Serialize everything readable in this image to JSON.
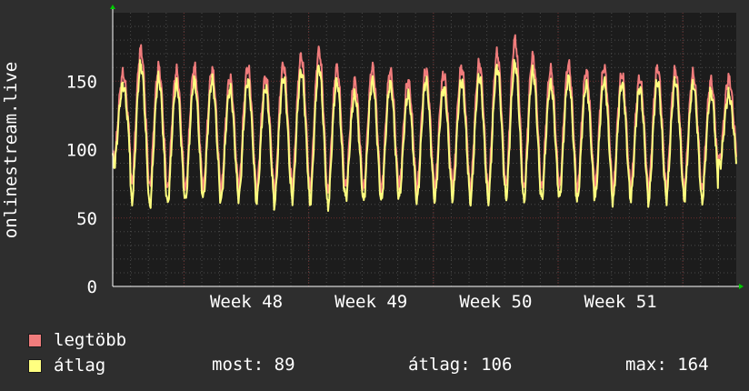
{
  "chart_data": {
    "type": "line",
    "ylabel": "onlinestream.live",
    "ylim": [
      0,
      200
    ],
    "yticks": [
      0,
      50,
      100,
      150
    ],
    "xticks": [
      "Week 48",
      "Week 49",
      "Week 50",
      "Week 51"
    ],
    "grid": true,
    "legend_placement": "bottom-left",
    "background": "#2e2e2e",
    "plot_background": "#1c1c1c",
    "grid_color": "#4a4a4a",
    "tick_grid_color": "#6b2d2d",
    "days": 35,
    "series": [
      {
        "name": "legtöbb",
        "color": "#f07c7c",
        "daily_peaks": [
          155,
          173,
          160,
          157,
          160,
          158,
          152,
          160,
          153,
          162,
          168,
          172,
          160,
          150,
          160,
          157,
          150,
          158,
          155,
          160,
          163,
          170,
          180,
          168,
          158,
          162,
          157,
          160,
          155,
          152,
          160,
          158,
          155,
          150,
          152
        ],
        "daily_troughs": [
          92,
          75,
          72,
          70,
          70,
          72,
          70,
          72,
          70,
          68,
          73,
          70,
          68,
          72,
          70,
          70,
          72,
          70,
          71,
          72,
          70,
          70,
          72,
          70,
          71,
          72,
          70,
          72,
          70,
          72,
          70,
          72,
          71,
          70,
          92
        ]
      },
      {
        "name": "átlag",
        "color": "#ffff80",
        "daily_peaks": [
          147,
          162,
          152,
          148,
          150,
          150,
          144,
          150,
          145,
          152,
          157,
          160,
          150,
          140,
          150,
          148,
          140,
          150,
          145,
          150,
          153,
          160,
          163,
          157,
          148,
          152,
          147,
          150,
          148,
          145,
          150,
          150,
          148,
          142,
          140
        ],
        "daily_troughs": [
          88,
          62,
          58,
          60,
          62,
          64,
          62,
          64,
          62,
          60,
          64,
          60,
          58,
          64,
          62,
          62,
          64,
          62,
          63,
          64,
          62,
          62,
          64,
          62,
          63,
          64,
          62,
          64,
          62,
          64,
          62,
          64,
          63,
          62,
          88
        ]
      }
    ]
  },
  "legend": [
    {
      "label": "legtöbb",
      "color": "#f07c7c"
    },
    {
      "label": "átlag",
      "color": "#ffff80"
    }
  ],
  "stats": {
    "now": "most: 89",
    "avg": "átlag: 106",
    "max": "max: 164"
  },
  "axis_arrow_color": "#00cc00"
}
